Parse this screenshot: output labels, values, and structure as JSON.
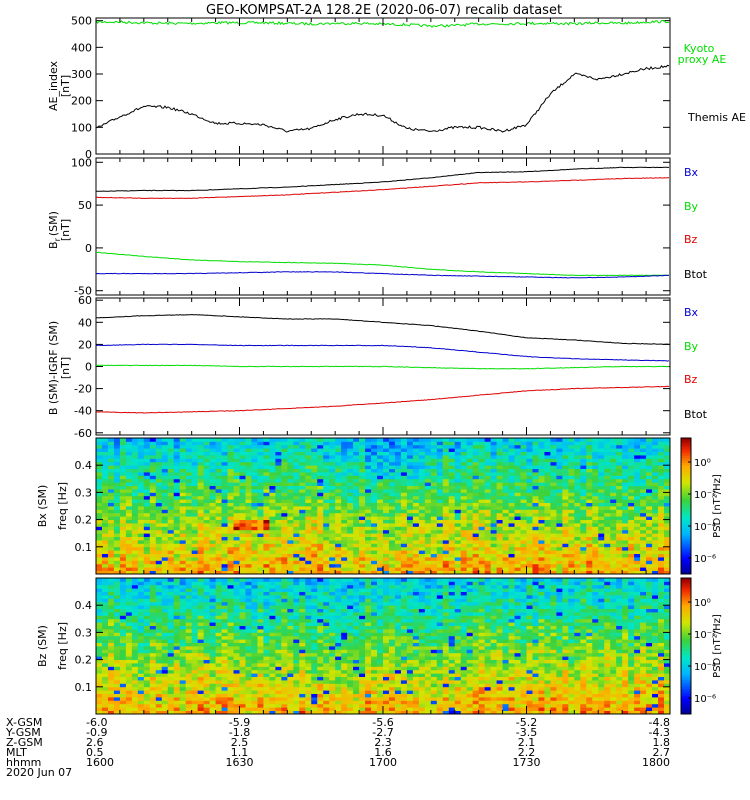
{
  "title": "GEO-KOMPSAT-2A 128.2E (2020-06-07) recalib dataset",
  "chart_data": [
    {
      "type": "line",
      "panel": "ae-index",
      "ylabel": "AE_index",
      "yunit": "[nT]",
      "ylim": [
        0,
        510
      ],
      "yticks": [
        "0",
        "100",
        "200",
        "300",
        "400",
        "500"
      ],
      "ytick_values": [
        0,
        100,
        200,
        300,
        400,
        500
      ],
      "x": [
        1600,
        1605,
        1610,
        1615,
        1620,
        1625,
        1630,
        1635,
        1640,
        1645,
        1650,
        1655,
        1700,
        1705,
        1710,
        1715,
        1720,
        1725,
        1730,
        1735,
        1740,
        1745,
        1750,
        1755,
        1800
      ],
      "series": [
        {
          "name": "Kyoto proxy AE",
          "color": "#00dd00",
          "values": [
            495,
            495,
            492,
            490,
            490,
            492,
            492,
            492,
            490,
            488,
            490,
            490,
            487,
            485,
            480,
            482,
            488,
            488,
            490,
            490,
            488,
            492,
            490,
            495,
            497
          ]
        },
        {
          "name": "Themis AE",
          "color": "#000000",
          "values": [
            95,
            140,
            178,
            175,
            150,
            115,
            115,
            110,
            85,
            95,
            130,
            150,
            145,
            95,
            85,
            100,
            100,
            85,
            110,
            225,
            300,
            280,
            300,
            320,
            330
          ]
        }
      ]
    },
    {
      "type": "line",
      "panel": "b-sm",
      "ylabel": "B",
      "ylabel_sub": "r",
      "ylabel_suffix": "(SM)",
      "yunit": "[nT]",
      "ylim": [
        -55,
        105
      ],
      "yticks": [
        "-50",
        "0",
        "50",
        "100"
      ],
      "ytick_values": [
        -50,
        0,
        50,
        100
      ],
      "x": [
        1600,
        1610,
        1620,
        1630,
        1640,
        1650,
        1700,
        1710,
        1720,
        1730,
        1740,
        1750,
        1800
      ],
      "series": [
        {
          "name": "Btot",
          "color": "#000000",
          "values": [
            66,
            67,
            67,
            69,
            71,
            74,
            77,
            82,
            88,
            89,
            92,
            94,
            94
          ]
        },
        {
          "name": "Bz",
          "color": "#dd0000",
          "values": [
            59,
            58,
            58,
            60,
            62,
            65,
            68,
            72,
            76,
            77,
            79,
            81,
            82
          ]
        },
        {
          "name": "By",
          "color": "#00dd00",
          "values": [
            -5,
            -10,
            -14,
            -16,
            -17,
            -18,
            -20,
            -25,
            -28,
            -30,
            -32,
            -32,
            -32
          ]
        },
        {
          "name": "Bx",
          "color": "#0000cc",
          "values": [
            -30,
            -30,
            -30,
            -29,
            -28,
            -28,
            -30,
            -32,
            -33,
            -34,
            -35,
            -34,
            -32
          ]
        }
      ],
      "legend": [
        "Bx",
        "By",
        "Bz",
        "Btot"
      ]
    },
    {
      "type": "line",
      "panel": "b-minus-igrf",
      "ylabel": "B (SM)-IGRF (SM)",
      "yunit": "[nT]",
      "ylim": [
        -62,
        62
      ],
      "yticks": [
        "-60",
        "-40",
        "-20",
        "0",
        "20",
        "40",
        "60"
      ],
      "ytick_values": [
        -60,
        -40,
        -20,
        0,
        20,
        40,
        60
      ],
      "x": [
        1600,
        1610,
        1620,
        1630,
        1640,
        1650,
        1700,
        1710,
        1720,
        1730,
        1740,
        1750,
        1800
      ],
      "series": [
        {
          "name": "Btot",
          "color": "#000000",
          "values": [
            44,
            46,
            47,
            45,
            43,
            43,
            40,
            37,
            32,
            26,
            24,
            21,
            20
          ]
        },
        {
          "name": "Bx",
          "color": "#0000cc",
          "values": [
            19,
            20,
            20,
            19,
            19,
            19,
            19,
            17,
            13,
            9,
            7,
            6,
            5
          ]
        },
        {
          "name": "By",
          "color": "#00dd00",
          "values": [
            1,
            1,
            1,
            0,
            0,
            0,
            0,
            -1,
            -2,
            -2,
            -1,
            0,
            0
          ]
        },
        {
          "name": "Bz",
          "color": "#dd0000",
          "values": [
            -41,
            -42,
            -41,
            -40,
            -38,
            -36,
            -33,
            -30,
            -26,
            -22,
            -20,
            -19,
            -18
          ]
        }
      ],
      "legend": [
        "Bx",
        "By",
        "Bz",
        "Btot"
      ]
    },
    {
      "type": "heatmap",
      "panel": "bx-spectrogram",
      "ylabel": "freq",
      "ylabel2": "Bx (SM)",
      "yunit": "[Hz]",
      "ylim": [
        0,
        0.5
      ],
      "yticks": [
        "0.1",
        "0.2",
        "0.3",
        "0.4"
      ],
      "ytick_values": [
        0.1,
        0.2,
        0.3,
        0.4
      ],
      "colorbar_label": "PSD [nT²/Hz]",
      "colorbar_ticks": [
        "10⁰",
        "10⁻²",
        "10⁻⁴",
        "10⁻⁶"
      ],
      "colorbar_tick_values": [
        0,
        -2,
        -4,
        -6
      ],
      "clim": [
        -7,
        1.5
      ]
    },
    {
      "type": "heatmap",
      "panel": "bz-spectrogram",
      "ylabel": "freq",
      "ylabel2": "Bz (SM)",
      "yunit": "[Hz]",
      "ylim": [
        0,
        0.5
      ],
      "yticks": [
        "0.1",
        "0.2",
        "0.3",
        "0.4"
      ],
      "ytick_values": [
        0.1,
        0.2,
        0.3,
        0.4
      ],
      "colorbar_label": "PSD [nT²/Hz]",
      "colorbar_ticks": [
        "10⁰",
        "10⁻²",
        "10⁻⁴",
        "10⁻⁶"
      ],
      "colorbar_tick_values": [
        0,
        -2,
        -4,
        -6
      ],
      "clim": [
        -7,
        1.5
      ]
    }
  ],
  "xaxis": {
    "tick_values": [
      1600,
      1630,
      1700,
      1730,
      1800
    ],
    "rows": [
      {
        "label": "X-GSM",
        "values": [
          "-6.0",
          "-5.9",
          "-5.6",
          "-5.2",
          "-4.8"
        ]
      },
      {
        "label": "Y-GSM",
        "values": [
          "-0.9",
          "-1.8",
          "-2.7",
          "-3.5",
          "-4.3"
        ]
      },
      {
        "label": "Z-GSM",
        "values": [
          "2.6",
          "2.5",
          "2.3",
          "2.1",
          "1.8"
        ]
      },
      {
        "label": "MLT",
        "values": [
          "0.5",
          "1.1",
          "1.6",
          "2.2",
          "2.7"
        ]
      },
      {
        "label": "hhmm",
        "values": [
          "1600",
          "1630",
          "1700",
          "1730",
          "1800"
        ]
      }
    ],
    "date": "2020 Jun 07"
  },
  "labels": {
    "kyoto_line1": "Kyoto",
    "kyoto_line2": "proxy AE",
    "themis": "Themis AE",
    "bx": "Bx",
    "by": "By",
    "bz": "Bz",
    "btot": "Btot"
  },
  "colors": {
    "black": "#000000",
    "green": "#00dd00",
    "red": "#dd0000",
    "blue": "#0000cc"
  }
}
